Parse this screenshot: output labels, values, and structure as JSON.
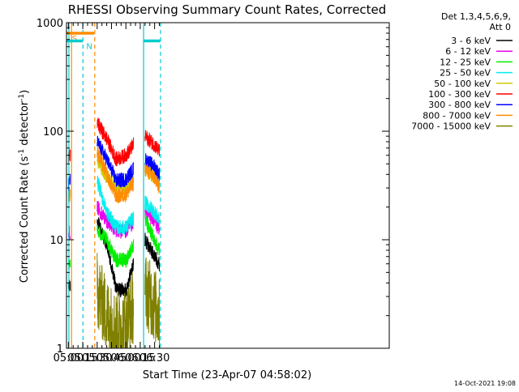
{
  "chart_data": {
    "type": "line",
    "title": "RHESSI Observing Summary Count Rates, Corrected",
    "xlabel": "Start Time (23-Apr-07 04:58:02)",
    "ylabel_main": "Corrected Count Rate (s",
    "ylabel_sup1": "-1",
    "ylabel_mid": " detector",
    "ylabel_sup2": "-1",
    "ylabel_end": ")",
    "y_scale": "log",
    "ylim": [
      1,
      1000
    ],
    "xlim_minutes": [
      298,
      635
    ],
    "x_ticks": [
      {
        "label": "05:00",
        "minute": 300
      },
      {
        "label": "05:15",
        "minute": 315
      },
      {
        "label": "05:30",
        "minute": 330
      },
      {
        "label": "05:45",
        "minute": 345
      },
      {
        "label": "06:00",
        "minute": 360
      },
      {
        "label": "06:15",
        "minute": 375
      },
      {
        "label": "06:30",
        "minute": 390
      }
    ],
    "y_ticks": [
      {
        "label": "1",
        "value": 1
      },
      {
        "label": "10",
        "value": 10
      },
      {
        "label": "100",
        "value": 100
      },
      {
        "label": "1000",
        "value": 1000
      }
    ],
    "legend": {
      "header1": "Det 1,3,4,5,6,9,",
      "header2": "Att 0",
      "placement": "right"
    },
    "series": [
      {
        "name": "3 - 6 keV",
        "color": "#000000",
        "values": [
          [
            300,
            3.5
          ],
          [
            302,
            3.8
          ],
          [
            330,
            15
          ],
          [
            340,
            9
          ],
          [
            350,
            3.5
          ],
          [
            360,
            3.4
          ],
          [
            368,
            6
          ],
          [
            380,
            10
          ],
          [
            390,
            7
          ],
          [
            395,
            6
          ]
        ]
      },
      {
        "name": "6 - 12 keV",
        "color": "#ee00ee",
        "values": [
          [
            300,
            11
          ],
          [
            302,
            12
          ],
          [
            330,
            20
          ],
          [
            340,
            15
          ],
          [
            350,
            12
          ],
          [
            360,
            12
          ],
          [
            368,
            14
          ],
          [
            380,
            18
          ],
          [
            390,
            15
          ],
          [
            395,
            12
          ]
        ]
      },
      {
        "name": "12 - 25 keV",
        "color": "#00ee00",
        "values": [
          [
            300,
            6
          ],
          [
            302,
            6.5
          ],
          [
            330,
            12
          ],
          [
            340,
            10
          ],
          [
            350,
            6.5
          ],
          [
            360,
            6.5
          ],
          [
            368,
            9
          ],
          [
            380,
            15
          ],
          [
            390,
            10
          ],
          [
            395,
            8
          ]
        ]
      },
      {
        "name": "25 - 50 keV",
        "color": "#00eeee",
        "values": [
          [
            300,
            25
          ],
          [
            302,
            27
          ],
          [
            330,
            35
          ],
          [
            340,
            18
          ],
          [
            350,
            13
          ],
          [
            360,
            13
          ],
          [
            368,
            16
          ],
          [
            380,
            22
          ],
          [
            390,
            18
          ],
          [
            395,
            15
          ]
        ]
      },
      {
        "name": "50 - 100 keV",
        "color": "#cccc00",
        "values": [
          [
            330,
            55
          ],
          [
            340,
            38
          ],
          [
            350,
            30
          ],
          [
            360,
            30
          ],
          [
            368,
            36
          ],
          [
            380,
            45
          ],
          [
            390,
            38
          ],
          [
            395,
            33
          ]
        ]
      },
      {
        "name": "100 - 300 keV",
        "color": "#ff0000",
        "values": [
          [
            300,
            55
          ],
          [
            302,
            60
          ],
          [
            330,
            120
          ],
          [
            340,
            85
          ],
          [
            350,
            55
          ],
          [
            360,
            60
          ],
          [
            368,
            75
          ],
          [
            380,
            90
          ],
          [
            390,
            75
          ],
          [
            395,
            65
          ]
        ]
      },
      {
        "name": "300 - 800 keV",
        "color": "#0000ff",
        "values": [
          [
            300,
            32
          ],
          [
            302,
            35
          ],
          [
            330,
            80
          ],
          [
            340,
            55
          ],
          [
            350,
            35
          ],
          [
            360,
            36
          ],
          [
            368,
            45
          ],
          [
            380,
            55
          ],
          [
            390,
            47
          ],
          [
            395,
            40
          ]
        ]
      },
      {
        "name": "800 - 7000 keV",
        "color": "#ff8c00",
        "values": [
          [
            300,
            25
          ],
          [
            302,
            27
          ],
          [
            330,
            65
          ],
          [
            340,
            40
          ],
          [
            350,
            25
          ],
          [
            360,
            26
          ],
          [
            368,
            33
          ],
          [
            380,
            45
          ],
          [
            390,
            37
          ],
          [
            395,
            30
          ]
        ]
      },
      {
        "name": "7000 - 15000 keV",
        "color": "#808000",
        "values": [
          [
            330,
            3.5
          ],
          [
            340,
            2
          ],
          [
            350,
            1.5
          ],
          [
            360,
            1.6
          ],
          [
            368,
            2.5
          ],
          [
            380,
            3.5
          ],
          [
            390,
            2.5
          ],
          [
            395,
            2
          ]
        ]
      }
    ],
    "flags": [
      {
        "label": "S",
        "color": "#ff8c00",
        "from": 298,
        "to": 327,
        "y_value": 800
      },
      {
        "label": "N",
        "color": "#00cccc",
        "from": 298,
        "to": 315,
        "y_value": 680
      },
      {
        "label": "",
        "color": "#00cccc",
        "from": 378,
        "to": 396,
        "y_value": 680
      }
    ],
    "vertical_lines": [
      {
        "minute": 300.5,
        "color": "#00cccc",
        "style": "solid"
      },
      {
        "minute": 303.3,
        "color": "#ff8c00",
        "style": "solid"
      },
      {
        "minute": 315.2,
        "color": "#00cccc",
        "style": "dashed"
      },
      {
        "minute": 327.5,
        "color": "#ff8c00",
        "style": "dashed"
      },
      {
        "minute": 378.5,
        "color": "#00cccc",
        "style": "solid"
      },
      {
        "minute": 396.2,
        "color": "#00cccc",
        "style": "dashed"
      }
    ],
    "timestamp": "14-Oct-2021 19:08"
  }
}
